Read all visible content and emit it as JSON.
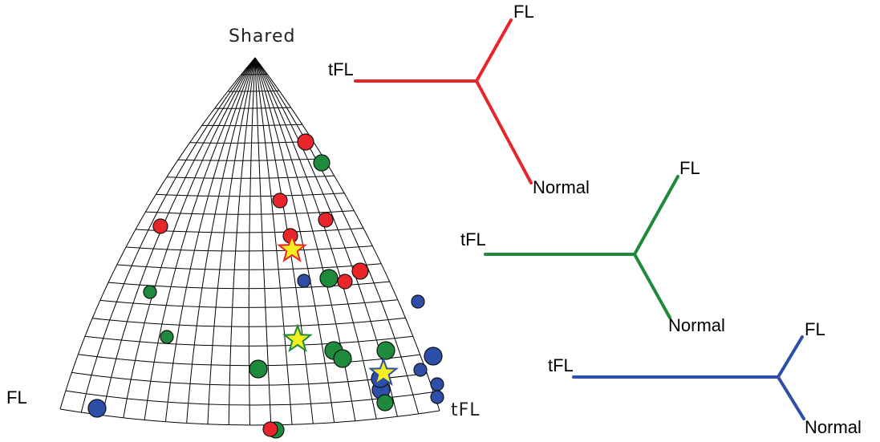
{
  "simplex": {
    "labels": {
      "apex": "Shared",
      "left": "FL",
      "right": "tFL"
    }
  },
  "colors": {
    "red": "#e8262a",
    "green": "#1e8a3c",
    "blue": "#2e4fa8",
    "star_fill": "#f2ee20"
  },
  "points": [
    {
      "color": "red"
    },
    {
      "color": "green"
    },
    {
      "color": "red"
    },
    {
      "color": "red"
    },
    {
      "color": "red"
    },
    {
      "color": "red"
    },
    {
      "color": "blue"
    },
    {
      "color": "green"
    },
    {
      "color": "red"
    },
    {
      "color": "red"
    },
    {
      "color": "green"
    },
    {
      "color": "blue"
    },
    {
      "color": "green"
    },
    {
      "color": "green"
    },
    {
      "color": "green"
    },
    {
      "color": "green"
    },
    {
      "color": "green"
    },
    {
      "color": "blue"
    },
    {
      "color": "blue"
    },
    {
      "color": "blue"
    },
    {
      "color": "blue"
    },
    {
      "color": "blue"
    },
    {
      "color": "green"
    },
    {
      "color": "blue"
    },
    {
      "color": "green"
    },
    {
      "color": "red"
    },
    {
      "color": "blue"
    }
  ],
  "stars": [
    {
      "fill": "star_fill",
      "stroke": "red"
    },
    {
      "fill": "star_fill",
      "stroke": "green"
    },
    {
      "fill": "star_fill",
      "stroke": "blue"
    }
  ],
  "trees": [
    {
      "color": "red",
      "labels": {
        "top": "FL",
        "left": "tFL",
        "bottom": "Normal"
      }
    },
    {
      "color": "green",
      "labels": {
        "top": "FL",
        "left": "tFL",
        "bottom": "Normal"
      }
    },
    {
      "color": "blue",
      "labels": {
        "top": "FL",
        "left": "tFL",
        "bottom": "Normal"
      }
    }
  ]
}
